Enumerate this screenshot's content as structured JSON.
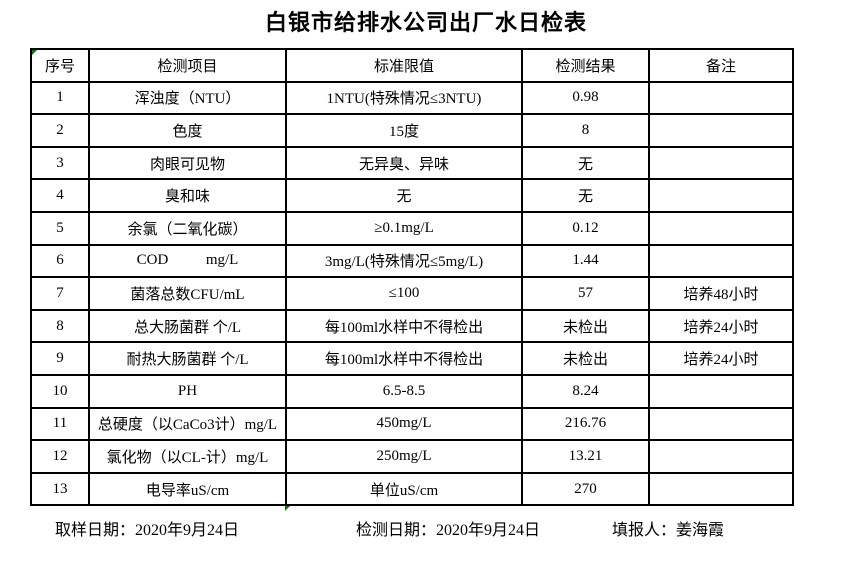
{
  "title": "白银市给排水公司出厂水日检表",
  "table": {
    "headers": [
      "序号",
      "检测项目",
      "标准限值",
      "检测结果",
      "备注"
    ],
    "rows": [
      [
        "1",
        "浑浊度（NTU）",
        "1NTU(特殊情况≤3NTU)",
        "0.98",
        ""
      ],
      [
        "2",
        "色度",
        "15度",
        "8",
        ""
      ],
      [
        "3",
        "肉眼可见物",
        "无异臭、异味",
        "无",
        ""
      ],
      [
        "4",
        "臭和味",
        "无",
        "无",
        ""
      ],
      [
        "5",
        "余氯（二氧化碳）",
        "≥0.1mg/L",
        "0.12",
        ""
      ],
      [
        "6",
        "COD          mg/L",
        "3mg/L(特殊情况≤5mg/L)",
        "1.44",
        ""
      ],
      [
        "7",
        "菌落总数CFU/mL",
        "≤100",
        "57",
        "培养48小时"
      ],
      [
        "8",
        "总大肠菌群 个/L",
        "每100ml水样中不得检出",
        "未检出",
        "培养24小时"
      ],
      [
        "9",
        "耐热大肠菌群 个/L",
        "每100ml水样中不得检出",
        "未检出",
        "培养24小时"
      ],
      [
        "10",
        "PH",
        "6.5-8.5",
        "8.24",
        ""
      ],
      [
        "11",
        "总硬度（以CaCo3计）mg/L",
        "450mg/L",
        "216.76",
        ""
      ],
      [
        "12",
        "氯化物（以CL-计）mg/L",
        "250mg/L",
        "13.21",
        ""
      ],
      [
        "13",
        "电导率uS/cm",
        "单位uS/cm",
        "270",
        ""
      ]
    ]
  },
  "footer": {
    "sampling_date": "取样日期：2020年9月24日",
    "test_date": "检测日期：2020年9月24日",
    "reporter": "填报人：姜海霞"
  },
  "colors": {
    "text": "#000000",
    "border": "#000000",
    "background": "#ffffff",
    "cell_marker_green": "#008000"
  }
}
